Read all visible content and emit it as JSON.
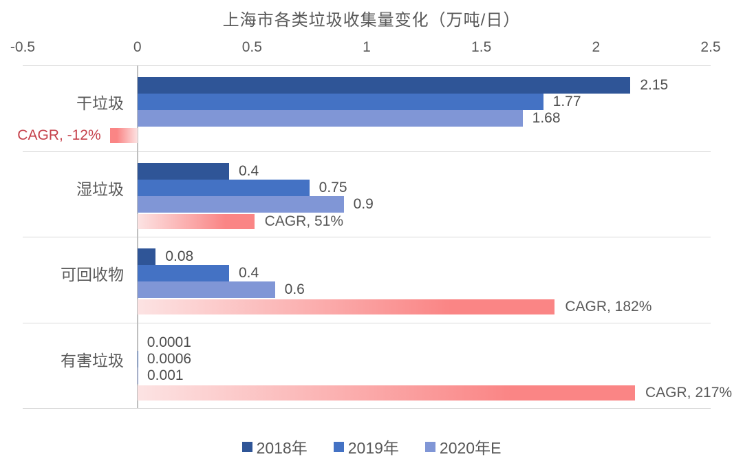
{
  "chart_data": {
    "type": "bar",
    "orientation": "horizontal-grouped",
    "title": "上海市各类垃圾收集量变化（万吨/日）",
    "categories": [
      "干垃圾",
      "湿垃圾",
      "可回收物",
      "有害垃圾"
    ],
    "x_axis": {
      "min": -0.5,
      "max": 2.5,
      "tick_values": [
        -0.5,
        0,
        0.5,
        1,
        1.5,
        2,
        2.5
      ],
      "tick_labels": [
        "-0.5",
        "0",
        "0.5",
        "1",
        "1.5",
        "2",
        "2.5"
      ],
      "gridlines": "horizontal category separators only"
    },
    "series": [
      {
        "key": "2018",
        "name": "2018年",
        "color": "#2F5597",
        "values": [
          2.15,
          0.4,
          0.08,
          0.0001
        ],
        "value_labels": [
          "2.15",
          "0.4",
          "0.08",
          "0.0001"
        ]
      },
      {
        "key": "2019",
        "name": "2019年",
        "color": "#4472C4",
        "values": [
          1.77,
          0.75,
          0.4,
          0.0006
        ],
        "value_labels": [
          "1.77",
          "0.75",
          "0.4",
          "0.0006"
        ]
      },
      {
        "key": "2020e",
        "name": "2020年E",
        "color": "#8096D6",
        "values": [
          1.68,
          0.9,
          0.6,
          0.001
        ],
        "value_labels": [
          "1.68",
          "0.9",
          "0.6",
          "0.001"
        ]
      }
    ],
    "cagr_series": {
      "name": "CAGR",
      "values_percent": [
        -12,
        51,
        182,
        217
      ],
      "axis_values": [
        -0.12,
        0.51,
        1.82,
        2.17
      ],
      "labels": [
        "CAGR, -12%",
        "CAGR, 51%",
        "CAGR, 182%",
        "CAGR, 217%"
      ],
      "gradient_start_color": "#FCE3E3",
      "gradient_end_color": "#FA8585",
      "label_color_positive": "#595959",
      "label_color_negative": "#C5404A"
    },
    "legend": {
      "position": "bottom-center",
      "entries": [
        "2018年",
        "2019年",
        "2020年E"
      ]
    },
    "style": {
      "background": "#FFFFFF",
      "title_color": "#595959",
      "axis_text_color": "#595959",
      "value_label_color": "#4D4D4D",
      "gridline_color": "#D9D9D9",
      "zero_axis_color": "#BFBFBF"
    }
  }
}
